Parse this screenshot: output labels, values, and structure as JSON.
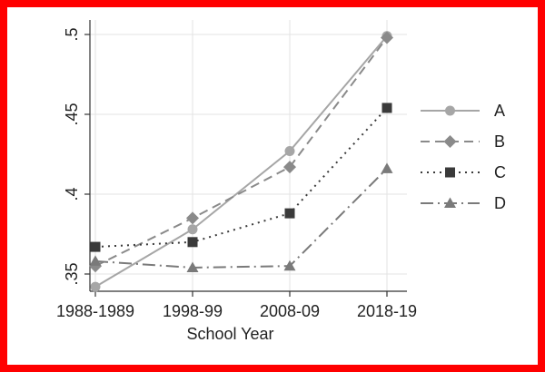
{
  "chart_data": {
    "type": "line",
    "title": "",
    "xlabel": "School Year",
    "ylabel": "",
    "categories": [
      "1988-1989",
      "1998-99",
      "2008-09",
      "2018-19"
    ],
    "ylim": [
      0.35,
      0.5
    ],
    "yticks": [
      {
        "value": 0.35,
        "label": ".35"
      },
      {
        "value": 0.4,
        "label": ".4"
      },
      {
        "value": 0.45,
        "label": ".45"
      },
      {
        "value": 0.5,
        "label": ".5"
      }
    ],
    "grid": true,
    "legend_position": "right",
    "series": [
      {
        "name": "A",
        "values": [
          0.342,
          0.378,
          0.427,
          0.499
        ],
        "marker": "circle",
        "line_style": "solid",
        "color": "#a6a6a6"
      },
      {
        "name": "B",
        "values": [
          0.355,
          0.385,
          0.417,
          0.498
        ],
        "marker": "diamond",
        "line_style": "dashed",
        "color": "#8a8a8a"
      },
      {
        "name": "C",
        "values": [
          0.367,
          0.37,
          0.388,
          0.454
        ],
        "marker": "square",
        "line_style": "dotted",
        "color": "#3a3a3a"
      },
      {
        "name": "D",
        "values": [
          0.358,
          0.354,
          0.355,
          0.416
        ],
        "marker": "triangle",
        "line_style": "dash-dot",
        "color": "#7a7a7a"
      }
    ]
  }
}
